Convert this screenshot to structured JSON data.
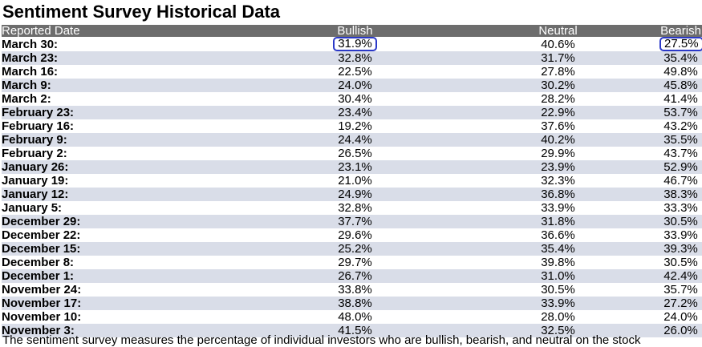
{
  "page": {
    "title": "Sentiment Survey Historical Data",
    "footnote": "The sentiment survey measures the percentage of individual investors who are bullish, bearish, and neutral on the stock"
  },
  "table": {
    "headers": [
      "Reported Date",
      "Bullish",
      "Neutral",
      "Bearish"
    ],
    "rows": [
      {
        "date": "March 30:",
        "bullish": "31.9%",
        "neutral": "40.6%",
        "bearish": "27.5%"
      },
      {
        "date": "March 23:",
        "bullish": "32.8%",
        "neutral": "31.7%",
        "bearish": "35.4%"
      },
      {
        "date": "March 16:",
        "bullish": "22.5%",
        "neutral": "27.8%",
        "bearish": "49.8%"
      },
      {
        "date": "March 9:",
        "bullish": "24.0%",
        "neutral": "30.2%",
        "bearish": "45.8%"
      },
      {
        "date": "March 2:",
        "bullish": "30.4%",
        "neutral": "28.2%",
        "bearish": "41.4%"
      },
      {
        "date": "February 23:",
        "bullish": "23.4%",
        "neutral": "22.9%",
        "bearish": "53.7%"
      },
      {
        "date": "February 16:",
        "bullish": "19.2%",
        "neutral": "37.6%",
        "bearish": "43.2%"
      },
      {
        "date": "February 9:",
        "bullish": "24.4%",
        "neutral": "40.2%",
        "bearish": "35.5%"
      },
      {
        "date": "February 2:",
        "bullish": "26.5%",
        "neutral": "29.9%",
        "bearish": "43.7%"
      },
      {
        "date": "January 26:",
        "bullish": "23.1%",
        "neutral": "23.9%",
        "bearish": "52.9%"
      },
      {
        "date": "January 19:",
        "bullish": "21.0%",
        "neutral": "32.3%",
        "bearish": "46.7%"
      },
      {
        "date": "January 12:",
        "bullish": "24.9%",
        "neutral": "36.8%",
        "bearish": "38.3%"
      },
      {
        "date": "January 5:",
        "bullish": "32.8%",
        "neutral": "33.9%",
        "bearish": "33.3%"
      },
      {
        "date": "December 29:",
        "bullish": "37.7%",
        "neutral": "31.8%",
        "bearish": "30.5%"
      },
      {
        "date": "December 22:",
        "bullish": "29.6%",
        "neutral": "36.6%",
        "bearish": "33.9%"
      },
      {
        "date": "December 15:",
        "bullish": "25.2%",
        "neutral": "35.4%",
        "bearish": "39.3%"
      },
      {
        "date": "December 8:",
        "bullish": "29.7%",
        "neutral": "39.8%",
        "bearish": "30.5%"
      },
      {
        "date": "December 1:",
        "bullish": "26.7%",
        "neutral": "31.0%",
        "bearish": "42.4%"
      },
      {
        "date": "November 24:",
        "bullish": "33.8%",
        "neutral": "30.5%",
        "bearish": "35.7%"
      },
      {
        "date": "November 17:",
        "bullish": "38.8%",
        "neutral": "33.9%",
        "bearish": "27.2%"
      },
      {
        "date": "November 10:",
        "bullish": "48.0%",
        "neutral": "28.0%",
        "bearish": "24.0%"
      },
      {
        "date": "November 3:",
        "bullish": "41.5%",
        "neutral": "32.5%",
        "bearish": "26.0%"
      }
    ]
  },
  "highlights": {
    "color": "#2b39c8",
    "cells": [
      "bullish-0",
      "bearish-0"
    ]
  },
  "colors": {
    "header_bg": "#6d6d6d",
    "alt_row_bg": "#d9dde8"
  }
}
